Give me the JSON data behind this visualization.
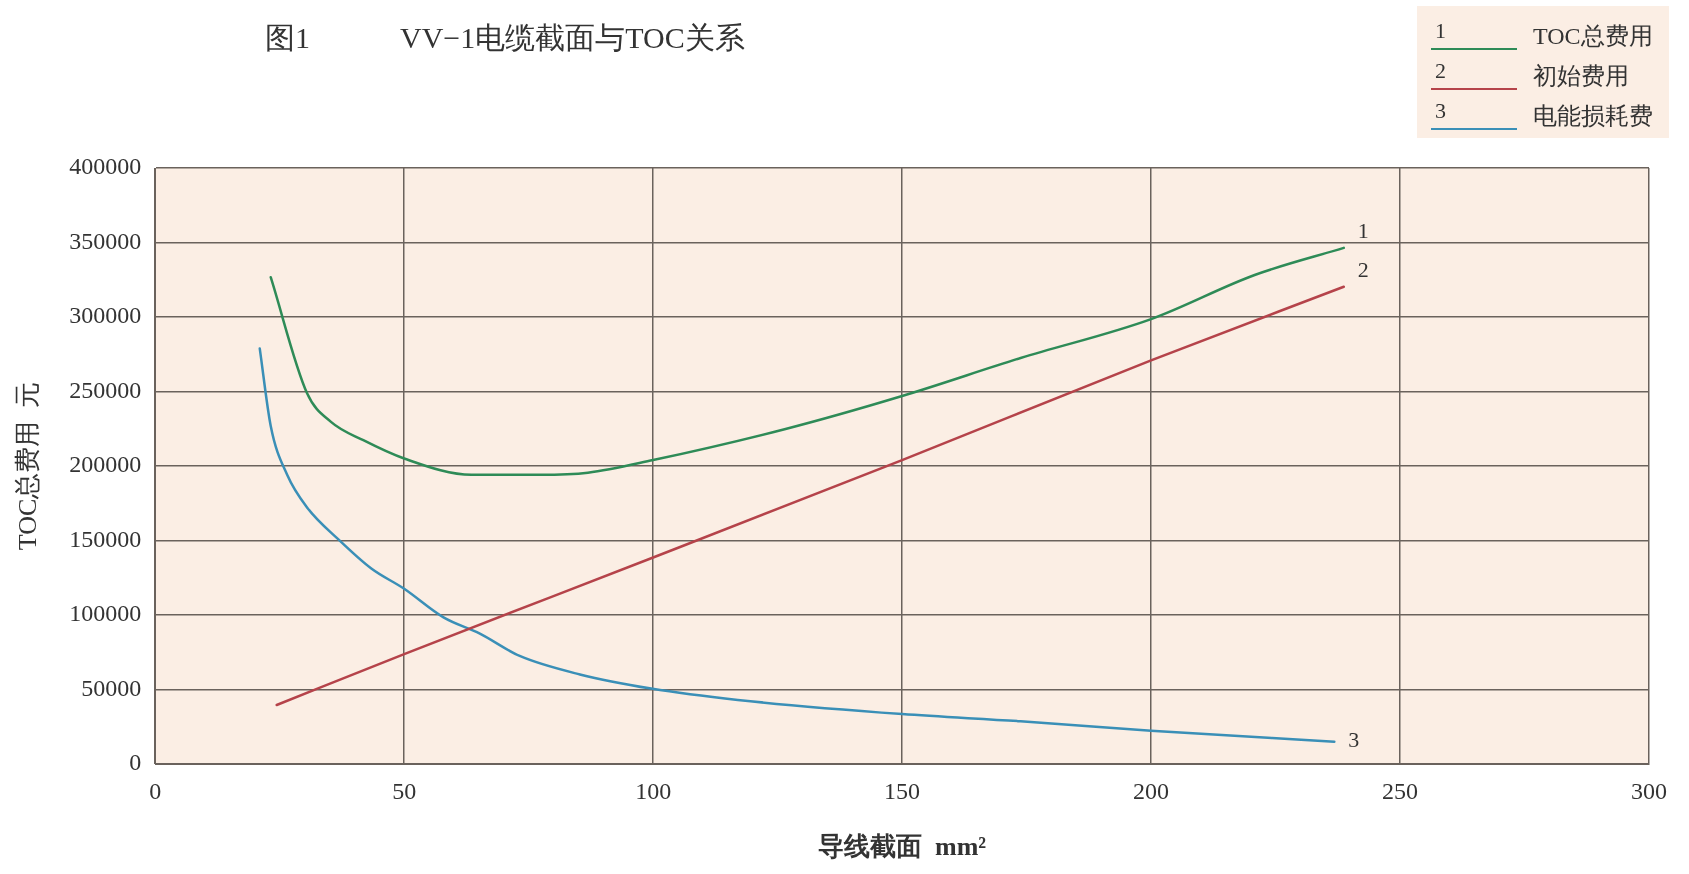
{
  "chart_data": {
    "type": "line",
    "title": "图1　　　VV−1电缆截面与TOC关系",
    "xlabel": "导线截面  mm²",
    "ylabel": "TOC总费用  元",
    "xlim": [
      0,
      300
    ],
    "xticks": [
      0,
      50,
      100,
      150,
      200,
      250,
      300
    ],
    "ylim": [
      0,
      400000
    ],
    "yticks": [
      0,
      50000,
      100000,
      150000,
      200000,
      250000,
      300000,
      350000,
      400000
    ],
    "grid": true,
    "legend": "top right",
    "marker": "none",
    "line_style": "solid",
    "series": [
      {
        "name": "TOC总费用",
        "color": "#2e8b57",
        "x": [
          23.2,
          30.5,
          35.3,
          41.8,
          50,
          63.5,
          77.3,
          86.9,
          100,
          126.4,
          150,
          173.8,
          200,
          220.8,
          238.7
        ],
        "values": [
          326700,
          248800,
          229600,
          217300,
          205000,
          194100,
          194100,
          195500,
          204000,
          224700,
          247000,
          272500,
          298600,
          328200,
          346400
        ]
      },
      {
        "name": "初始费用",
        "color": "#b5434a",
        "x": [
          24.4,
          50,
          100,
          150,
          200,
          238.7
        ],
        "values": [
          39600,
          73800,
          138600,
          204000,
          270900,
          320300
        ]
      },
      {
        "name": "电能损耗费",
        "color": "#3a8fb7",
        "x": [
          21,
          23.2,
          26.5,
          30.5,
          36.9,
          43.4,
          50,
          57.9,
          65.2,
          73.2,
          85.3,
          99.6,
          117,
          150,
          173.8,
          200,
          236.8
        ],
        "values": [
          278800,
          226900,
          194100,
          172200,
          150400,
          131200,
          117600,
          98400,
          87500,
          72500,
          60100,
          50600,
          43000,
          33500,
          28700,
          22300,
          15000
        ]
      }
    ],
    "annotations": [
      "1",
      "2",
      "3"
    ]
  }
}
